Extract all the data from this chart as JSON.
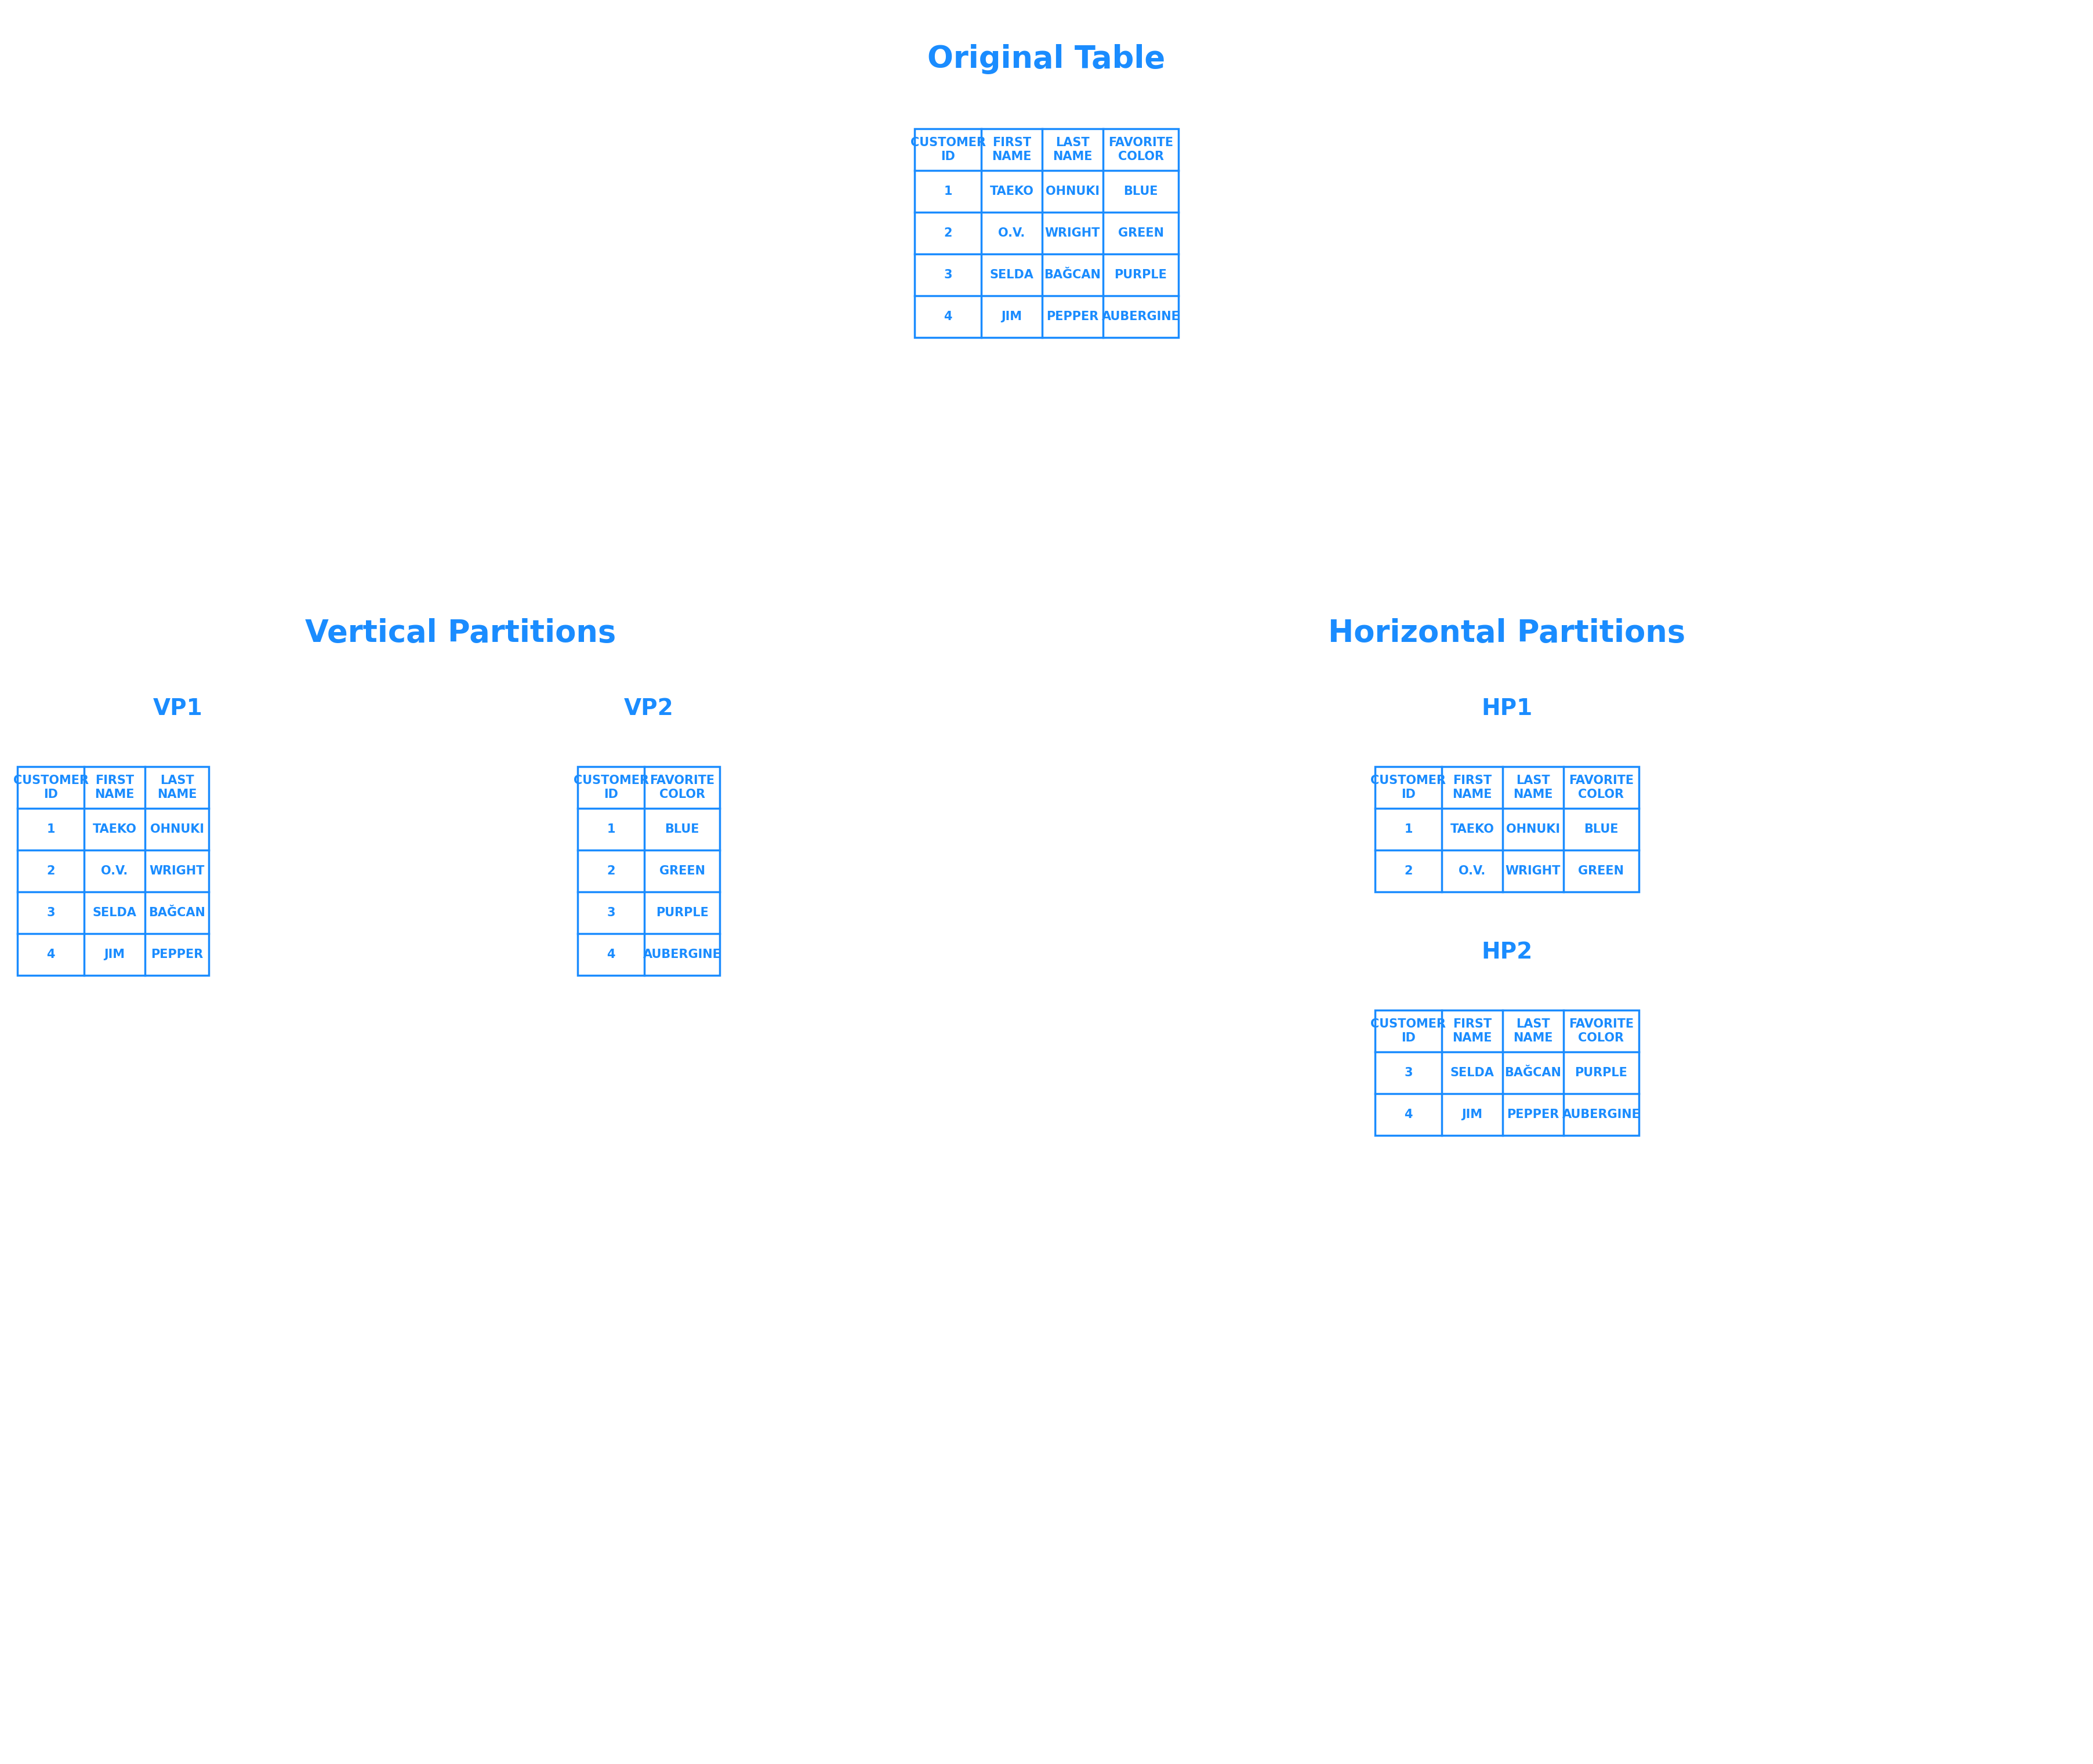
{
  "blue": "#1a8cff",
  "bg": "#ffffff",
  "title_fontsize": 38,
  "subtitle_fontsize": 28,
  "label_fontsize": 18,
  "cell_fontsize": 18,
  "main_title": "Original Table",
  "vp_title": "Vertical Partitions",
  "hp_title": "Horizontal Partitions",
  "vp1_title": "VP1",
  "vp2_title": "VP2",
  "hp1_title": "HP1",
  "hp2_title": "HP2",
  "orig_headers": [
    "CUSTOMER\nID",
    "FIRST\nNAME",
    "LAST\nNAME",
    "FAVORITE\nCOLOR"
  ],
  "orig_rows": [
    [
      "1",
      "TAEKO",
      "OHNUKI",
      "BLUE"
    ],
    [
      "2",
      "O.V.",
      "WRIGHT",
      "GREEN"
    ],
    [
      "3",
      "SELDA",
      "BAĞCAN",
      "PURPLE"
    ],
    [
      "4",
      "JIM",
      "PEPPER",
      "AUBERGINE"
    ]
  ],
  "vp1_headers": [
    "CUSTOMER\nID",
    "FIRST\nNAME",
    "LAST\nNAME"
  ],
  "vp1_rows": [
    [
      "1",
      "TAEKO",
      "OHNUKI"
    ],
    [
      "2",
      "O.V.",
      "WRIGHT"
    ],
    [
      "3",
      "SELDA",
      "BAĞCAN"
    ],
    [
      "4",
      "JIM",
      "PEPPER"
    ]
  ],
  "vp2_headers": [
    "CUSTOMER\nID",
    "FAVORITE\nCOLOR"
  ],
  "vp2_rows": [
    [
      "1",
      "BLUE"
    ],
    [
      "2",
      "GREEN"
    ],
    [
      "3",
      "PURPLE"
    ],
    [
      "4",
      "AUBERGINE"
    ]
  ],
  "hp1_headers": [
    "CUSTOMER\nID",
    "FIRST\nNAME",
    "LAST\nNAME",
    "FAVORITE\nCOLOR"
  ],
  "hp1_rows": [
    [
      "1",
      "TAEKO",
      "OHNUKI",
      "BLUE"
    ],
    [
      "2",
      "O.V.",
      "WRIGHT",
      "GREEN"
    ]
  ],
  "hp2_headers": [
    "CUSTOMER\nID",
    "FIRST\nNAME",
    "LAST\nNAME",
    "FAVORITE\nCOLOR"
  ],
  "hp2_rows": [
    [
      "3",
      "SELDA",
      "BAĞCAN",
      "PURPLE"
    ],
    [
      "4",
      "JIM",
      "PEPPER",
      "AUBERGINE"
    ]
  ]
}
